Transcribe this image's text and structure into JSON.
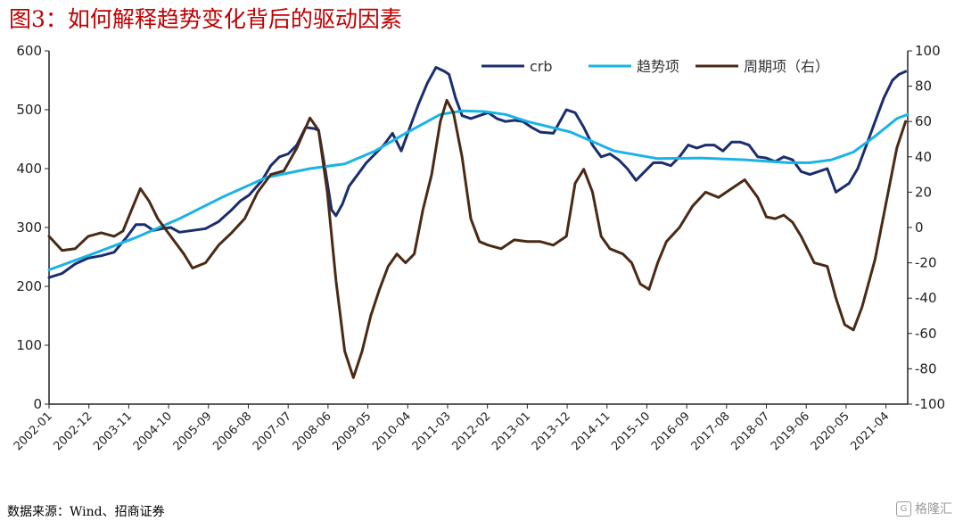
{
  "title": "图3：如何解释趋势变化背后的驱动因素",
  "source": "数据来源：Wind、招商证券",
  "watermark": {
    "icon": "G",
    "text": "格隆汇"
  },
  "colors": {
    "crb": "#1a2e6e",
    "trend": "#1ab3e6",
    "cycle": "#4a2a15",
    "title": "#c00000"
  },
  "chart_data": {
    "type": "line",
    "title": "",
    "xlabel": "",
    "ylabel": "",
    "ylim": [
      0,
      600
    ],
    "y2lim": [
      -100,
      100
    ],
    "yticks": [
      0,
      100,
      200,
      300,
      400,
      500,
      600
    ],
    "y2ticks": [
      -100,
      -80,
      -60,
      -40,
      -20,
      0,
      20,
      40,
      60,
      80,
      100
    ],
    "xlim": [
      2002.0,
      2021.75
    ],
    "xticks": [
      "2002-01",
      "2002-12",
      "2003-11",
      "2004-10",
      "2005-09",
      "2006-08",
      "2007-07",
      "2008-06",
      "2009-05",
      "2010-04",
      "2011-03",
      "2012-02",
      "2013-01",
      "2013-12",
      "2014-11",
      "2015-10",
      "2016-09",
      "2017-08",
      "2018-07",
      "2019-06",
      "2020-05",
      "2021-04"
    ],
    "legend_position": "top-right",
    "series": [
      {
        "name": "crb",
        "axis": "left",
        "x": [
          2002.0,
          2002.3,
          2002.6,
          2002.9,
          2003.2,
          2003.5,
          2003.8,
          2004.0,
          2004.2,
          2004.4,
          2004.6,
          2004.8,
          2005.0,
          2005.3,
          2005.6,
          2005.9,
          2006.2,
          2006.4,
          2006.6,
          2006.9,
          2007.1,
          2007.3,
          2007.5,
          2007.7,
          2007.9,
          2008.1,
          2008.2,
          2008.35,
          2008.5,
          2008.6,
          2008.75,
          2008.9,
          2009.0,
          2009.15,
          2009.3,
          2009.5,
          2009.7,
          2009.9,
          2010.1,
          2010.3,
          2010.5,
          2010.7,
          2010.9,
          2011.1,
          2011.2,
          2011.35,
          2011.5,
          2011.7,
          2011.9,
          2012.1,
          2012.3,
          2012.5,
          2012.7,
          2012.9,
          2013.1,
          2013.3,
          2013.6,
          2013.9,
          2014.1,
          2014.3,
          2014.5,
          2014.7,
          2014.9,
          2015.1,
          2015.3,
          2015.5,
          2015.7,
          2015.9,
          2016.1,
          2016.3,
          2016.5,
          2016.7,
          2016.9,
          2017.1,
          2017.3,
          2017.5,
          2017.7,
          2017.9,
          2018.1,
          2018.3,
          2018.5,
          2018.7,
          2018.9,
          2019.1,
          2019.3,
          2019.5,
          2019.7,
          2019.9,
          2020.1,
          2020.3,
          2020.4,
          2020.6,
          2020.8,
          2021.0,
          2021.2,
          2021.4,
          2021.55,
          2021.7
        ],
        "values": [
          215,
          222,
          238,
          248,
          252,
          258,
          285,
          305,
          305,
          295,
          298,
          300,
          292,
          295,
          298,
          310,
          330,
          345,
          355,
          380,
          405,
          420,
          425,
          440,
          470,
          468,
          465,
          400,
          330,
          320,
          340,
          370,
          380,
          395,
          410,
          425,
          440,
          460,
          430,
          470,
          510,
          545,
          572,
          565,
          560,
          520,
          490,
          485,
          490,
          495,
          485,
          480,
          482,
          480,
          470,
          462,
          460,
          500,
          495,
          470,
          440,
          420,
          425,
          415,
          400,
          380,
          395,
          410,
          410,
          405,
          420,
          440,
          435,
          440,
          440,
          430,
          445,
          445,
          440,
          420,
          418,
          412,
          420,
          415,
          395,
          390,
          395,
          400,
          360,
          370,
          375,
          400,
          440,
          480,
          520,
          550,
          560,
          565
        ]
      },
      {
        "name": "趋势项",
        "axis": "left",
        "x": [
          2002.0,
          2003.0,
          2004.0,
          2005.0,
          2006.0,
          2007.0,
          2008.0,
          2008.8,
          2009.5,
          2010.2,
          2011.0,
          2011.5,
          2012.0,
          2012.5,
          2013.0,
          2014.0,
          2015.0,
          2016.0,
          2017.0,
          2018.0,
          2019.0,
          2019.5,
          2020.0,
          2020.5,
          2021.0,
          2021.5,
          2021.75
        ],
        "values": [
          228,
          255,
          283,
          315,
          352,
          385,
          400,
          408,
          430,
          460,
          492,
          498,
          497,
          492,
          480,
          462,
          430,
          417,
          418,
          415,
          410,
          410,
          415,
          428,
          455,
          485,
          492
        ]
      },
      {
        "name": "周期项（右）",
        "axis": "right",
        "x": [
          2002.0,
          2002.3,
          2002.6,
          2002.9,
          2003.2,
          2003.5,
          2003.7,
          2003.9,
          2004.1,
          2004.3,
          2004.5,
          2004.8,
          2005.1,
          2005.3,
          2005.6,
          2005.9,
          2006.2,
          2006.5,
          2006.8,
          2007.1,
          2007.4,
          2007.7,
          2008.0,
          2008.2,
          2008.4,
          2008.6,
          2008.8,
          2009.0,
          2009.2,
          2009.4,
          2009.6,
          2009.8,
          2010.0,
          2010.2,
          2010.4,
          2010.6,
          2010.8,
          2011.0,
          2011.15,
          2011.3,
          2011.5,
          2011.7,
          2011.9,
          2012.1,
          2012.4,
          2012.7,
          2013.0,
          2013.3,
          2013.6,
          2013.9,
          2014.1,
          2014.3,
          2014.5,
          2014.7,
          2014.9,
          2015.2,
          2015.4,
          2015.6,
          2015.8,
          2016.0,
          2016.2,
          2016.5,
          2016.8,
          2017.1,
          2017.4,
          2017.7,
          2018.0,
          2018.3,
          2018.5,
          2018.7,
          2018.9,
          2019.1,
          2019.3,
          2019.6,
          2019.9,
          2020.1,
          2020.3,
          2020.5,
          2020.7,
          2021.0,
          2021.3,
          2021.5,
          2021.7
        ],
        "values": [
          -5,
          -13,
          -12,
          -5,
          -3,
          -5,
          -2,
          10,
          22,
          15,
          5,
          -5,
          -15,
          -23,
          -20,
          -10,
          -3,
          5,
          20,
          30,
          32,
          45,
          62,
          55,
          20,
          -30,
          -70,
          -85,
          -70,
          -50,
          -35,
          -22,
          -15,
          -20,
          -15,
          10,
          30,
          60,
          72,
          65,
          40,
          5,
          -8,
          -10,
          -12,
          -7,
          -8,
          -8,
          -10,
          -5,
          25,
          33,
          20,
          -5,
          -12,
          -15,
          -20,
          -32,
          -35,
          -20,
          -8,
          0,
          12,
          20,
          17,
          22,
          27,
          17,
          6,
          5,
          7,
          3,
          -5,
          -20,
          -22,
          -40,
          -55,
          -58,
          -45,
          -18,
          20,
          45,
          60
        ]
      }
    ]
  }
}
